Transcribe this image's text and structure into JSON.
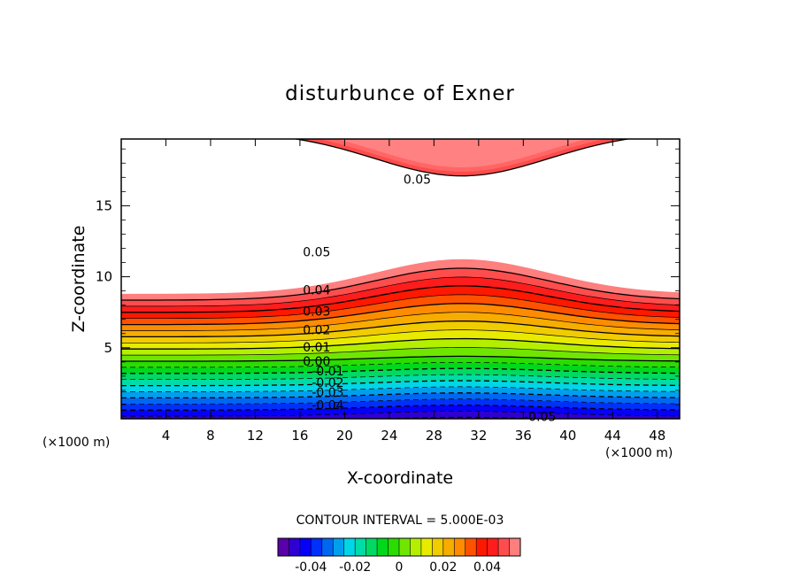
{
  "chart_data": {
    "type": "contour",
    "title": "disturbunce of Exner",
    "xlabel": "X-coordinate",
    "ylabel": "Z-coordinate",
    "x_unit_left": "(×1000 m)",
    "x_unit_right": "(×1000 m)",
    "xlim": [
      0,
      50
    ],
    "ylim": [
      0,
      19.7
    ],
    "x_ticks": [
      4,
      8,
      12,
      16,
      20,
      24,
      28,
      32,
      36,
      40,
      44,
      48
    ],
    "y_ticks": [
      5,
      10,
      15
    ],
    "contour_interval_text": "CONTOUR INTERVAL = 5.000E-03",
    "contour_interval": 0.005,
    "value_range": [
      -0.055,
      0.055
    ],
    "contour_labels": [
      {
        "text": "0.05",
        "x": 26.5,
        "z": 16.8
      },
      {
        "text": "0.05",
        "x": 17.5,
        "z": 11.7
      },
      {
        "text": "0.04",
        "x": 17.5,
        "z": 9.0
      },
      {
        "text": "0.03",
        "x": 17.5,
        "z": 7.5
      },
      {
        "text": "0.02",
        "x": 17.5,
        "z": 6.2
      },
      {
        "text": "0.01",
        "x": 17.5,
        "z": 5.0
      },
      {
        "text": "0.00",
        "x": 17.5,
        "z": 4.0
      },
      {
        "text": "-0.01",
        "x": 18.5,
        "z": 3.3
      },
      {
        "text": "-0.02",
        "x": 18.5,
        "z": 2.5
      },
      {
        "text": "-0.03",
        "x": 18.5,
        "z": 1.8
      },
      {
        "text": "-0.04",
        "x": 18.5,
        "z": 0.9
      },
      {
        "text": "-0.05",
        "x": 37.5,
        "z": 0.1
      }
    ],
    "colorbar": {
      "ticks": [
        "-0.04",
        "-0.02",
        "0",
        "0.02",
        "0.04"
      ],
      "tick_values": [
        -0.04,
        -0.02,
        0,
        0.02,
        0.04
      ],
      "range": [
        -0.055,
        0.055
      ]
    }
  }
}
